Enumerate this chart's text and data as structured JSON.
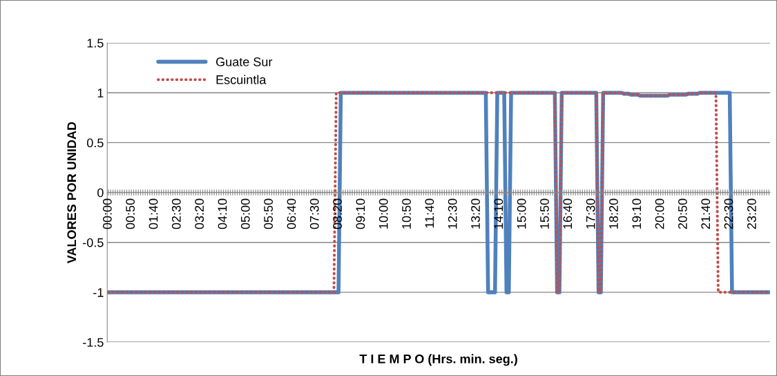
{
  "chart_data": {
    "type": "line",
    "xlabel": "T I E M P O (Hrs. min. seg.)",
    "ylabel": "VALORES POR UNIDAD",
    "categories": [
      "00:00",
      null,
      null,
      null,
      null,
      null,
      null,
      null,
      null,
      null,
      "00:50",
      null,
      null,
      null,
      null,
      null,
      null,
      null,
      null,
      null,
      "01:40",
      null,
      null,
      null,
      null,
      null,
      null,
      null,
      null,
      null,
      "02:30",
      null,
      null,
      null,
      null,
      null,
      null,
      null,
      null,
      null,
      "03:20",
      null,
      null,
      null,
      null,
      null,
      null,
      null,
      null,
      null,
      "04:10",
      null,
      null,
      null,
      null,
      null,
      null,
      null,
      null,
      null,
      "05:00",
      null,
      null,
      null,
      null,
      null,
      null,
      null,
      null,
      null,
      "05:50",
      null,
      null,
      null,
      null,
      null,
      null,
      null,
      null,
      null,
      "06:40",
      null,
      null,
      null,
      null,
      null,
      null,
      null,
      null,
      null,
      "07:30",
      null,
      null,
      null,
      null,
      null,
      null,
      null,
      null,
      null,
      "08:20",
      null,
      null,
      null,
      null,
      null,
      null,
      null,
      null,
      null,
      "09:10",
      null,
      null,
      null,
      null,
      null,
      null,
      null,
      null,
      null,
      "10:00",
      null,
      null,
      null,
      null,
      null,
      null,
      null,
      null,
      null,
      "10:50",
      null,
      null,
      null,
      null,
      null,
      null,
      null,
      null,
      null,
      "11:40",
      null,
      null,
      null,
      null,
      null,
      null,
      null,
      null,
      null,
      "12:30",
      null,
      null,
      null,
      null,
      null,
      null,
      null,
      null,
      null,
      "13:20",
      null,
      null,
      null,
      null,
      null,
      null,
      null,
      null,
      null,
      "14:10",
      null,
      null,
      null,
      null,
      null,
      null,
      null,
      null,
      null,
      "15:00",
      null,
      null,
      null,
      null,
      null,
      null,
      null,
      null,
      null,
      "15:50",
      null,
      null,
      null,
      null,
      null,
      null,
      null,
      null,
      null,
      "16:40",
      null,
      null,
      null,
      null,
      null,
      null,
      null,
      null,
      null,
      "17:30",
      null,
      null,
      null,
      null,
      null,
      null,
      null,
      null,
      null,
      "18:20",
      null,
      null,
      null,
      null,
      null,
      null,
      null,
      null,
      null,
      "19:10",
      null,
      null,
      null,
      null,
      null,
      null,
      null,
      null,
      null,
      "20:00",
      null,
      null,
      null,
      null,
      null,
      null,
      null,
      null,
      null,
      "20:50",
      null,
      null,
      null,
      null,
      null,
      null,
      null,
      null,
      null,
      "21:40",
      null,
      null,
      null,
      null,
      null,
      null,
      null,
      null,
      null,
      "22:30",
      null,
      null,
      null,
      null,
      null,
      null,
      null,
      null,
      null,
      "23:20",
      null,
      null,
      null,
      null,
      null,
      null,
      null
    ],
    "series": [
      {
        "name": "Guate Sur",
        "color": "#4f81bd",
        "line_style": "solid",
        "values": [
          -1,
          -1,
          -1,
          -1,
          -1,
          -1,
          -1,
          -1,
          -1,
          -1,
          -1,
          -1,
          -1,
          -1,
          -1,
          -1,
          -1,
          -1,
          -1,
          -1,
          -1,
          -1,
          -1,
          -1,
          -1,
          -1,
          -1,
          -1,
          -1,
          -1,
          -1,
          -1,
          -1,
          -1,
          -1,
          -1,
          -1,
          -1,
          -1,
          -1,
          -1,
          -1,
          -1,
          -1,
          -1,
          -1,
          -1,
          -1,
          -1,
          -1,
          -1,
          -1,
          -1,
          -1,
          -1,
          -1,
          -1,
          -1,
          -1,
          -1,
          -1,
          -1,
          -1,
          -1,
          -1,
          -1,
          -1,
          -1,
          -1,
          -1,
          -1,
          -1,
          -1,
          -1,
          -1,
          -1,
          -1,
          -1,
          -1,
          -1,
          -1,
          -1,
          -1,
          -1,
          -1,
          -1,
          -1,
          -1,
          -1,
          -1,
          -1,
          -1,
          -1,
          -1,
          -1,
          -1,
          -1,
          -1,
          -1,
          -1,
          -1,
          1,
          1,
          1,
          1,
          1,
          1,
          1,
          1,
          1,
          1,
          1,
          1,
          1,
          1,
          1,
          1,
          1,
          1,
          1,
          1,
          1,
          1,
          1,
          1,
          1,
          1,
          1,
          1,
          1,
          1,
          1,
          1,
          1,
          1,
          1,
          1,
          1,
          1,
          1,
          1,
          1,
          1,
          1,
          1,
          1,
          1,
          1,
          1,
          1,
          1,
          1,
          1,
          1,
          1,
          1,
          1,
          1,
          1,
          1,
          1,
          1,
          1,
          1,
          1,
          -1,
          -1,
          -1,
          -1,
          1,
          1,
          1,
          1,
          -1,
          -1,
          1,
          1,
          1,
          1,
          1,
          1,
          1,
          1,
          1,
          1,
          1,
          1,
          1,
          1,
          1,
          1,
          1,
          1,
          1,
          1,
          -1,
          -1,
          1,
          1,
          1,
          1,
          1,
          1,
          1,
          1,
          1,
          1,
          1,
          1,
          1,
          1,
          1,
          1,
          -1,
          -1,
          1,
          1,
          1,
          1,
          1,
          1,
          1,
          1,
          1,
          0.99,
          0.99,
          0.99,
          0.98,
          0.98,
          0.98,
          0.98,
          0.97,
          0.97,
          0.97,
          0.97,
          0.97,
          0.97,
          0.97,
          0.97,
          0.97,
          0.97,
          0.97,
          0.97,
          0.97,
          0.98,
          0.98,
          0.98,
          0.98,
          0.98,
          0.98,
          0.98,
          0.98,
          0.99,
          0.99,
          0.99,
          0.99,
          0.99,
          1,
          1,
          1,
          1,
          1,
          1,
          1,
          1,
          1,
          1,
          1,
          1,
          1,
          1,
          -1,
          -1,
          -1,
          -1,
          -1,
          -1,
          -1,
          -1,
          -1,
          -1,
          -1,
          -1,
          -1,
          -1,
          -1,
          -1,
          -1
        ]
      },
      {
        "name": "Escuintla",
        "color": "#c0504d",
        "line_style": "dotted",
        "values": [
          -1,
          -1,
          -1,
          -1,
          -1,
          -1,
          -1,
          -1,
          -1,
          -1,
          -1,
          -1,
          -1,
          -1,
          -1,
          -1,
          -1,
          -1,
          -1,
          -1,
          -1,
          -1,
          -1,
          -1,
          -1,
          -1,
          -1,
          -1,
          -1,
          -1,
          -1,
          -1,
          -1,
          -1,
          -1,
          -1,
          -1,
          -1,
          -1,
          -1,
          -1,
          -1,
          -1,
          -1,
          -1,
          -1,
          -1,
          -1,
          -1,
          -1,
          -1,
          -1,
          -1,
          -1,
          -1,
          -1,
          -1,
          -1,
          -1,
          -1,
          -1,
          -1,
          -1,
          -1,
          -1,
          -1,
          -1,
          -1,
          -1,
          -1,
          -1,
          -1,
          -1,
          -1,
          -1,
          -1,
          -1,
          -1,
          -1,
          -1,
          -1,
          -1,
          -1,
          -1,
          -1,
          -1,
          -1,
          -1,
          -1,
          -1,
          -1,
          -1,
          -1,
          -1,
          -1,
          -1,
          -1,
          -1,
          -1,
          1,
          1,
          1,
          1,
          1,
          1,
          1,
          1,
          1,
          1,
          1,
          1,
          1,
          1,
          1,
          1,
          1,
          1,
          1,
          1,
          1,
          1,
          1,
          1,
          1,
          1,
          1,
          1,
          1,
          1,
          1,
          1,
          1,
          1,
          1,
          1,
          1,
          1,
          1,
          1,
          1,
          1,
          1,
          1,
          1,
          1,
          1,
          1,
          1,
          1,
          1,
          1,
          1,
          1,
          1,
          1,
          1,
          1,
          1,
          1,
          1,
          1,
          1,
          1,
          1,
          1,
          1,
          1,
          1,
          1,
          1,
          1,
          1,
          1,
          1,
          1,
          1,
          1,
          1,
          1,
          1,
          1,
          1,
          1,
          1,
          1,
          1,
          1,
          1,
          1,
          1,
          1,
          1,
          1,
          1,
          1,
          -1,
          -1,
          1,
          1,
          1,
          1,
          1,
          1,
          1,
          1,
          1,
          1,
          1,
          1,
          1,
          1,
          1,
          1,
          -1,
          -1,
          1,
          1,
          1,
          1,
          1,
          1,
          1,
          1,
          1,
          0.99,
          0.99,
          0.99,
          0.98,
          0.98,
          0.98,
          0.98,
          0.97,
          0.97,
          0.97,
          0.97,
          0.97,
          0.97,
          0.97,
          0.97,
          0.97,
          0.97,
          0.97,
          0.97,
          0.97,
          0.98,
          0.98,
          0.98,
          0.98,
          0.98,
          0.98,
          0.98,
          0.98,
          0.99,
          0.99,
          0.99,
          0.99,
          0.99,
          1,
          1,
          1,
          1,
          1,
          1,
          1,
          1,
          -1,
          -1,
          -1,
          -1,
          -1,
          -1,
          -1,
          -1,
          -1,
          -1,
          -1,
          -1,
          -1,
          -1,
          -1,
          -1,
          -1,
          -1,
          -1,
          -1,
          -1,
          -1,
          -1
        ]
      }
    ],
    "ylim": [
      -1.5,
      1.5
    ],
    "yticks": [
      -1.5,
      -1,
      -0.5,
      0,
      0.5,
      1,
      1.5
    ],
    "grid": "y",
    "legend": "top left"
  }
}
